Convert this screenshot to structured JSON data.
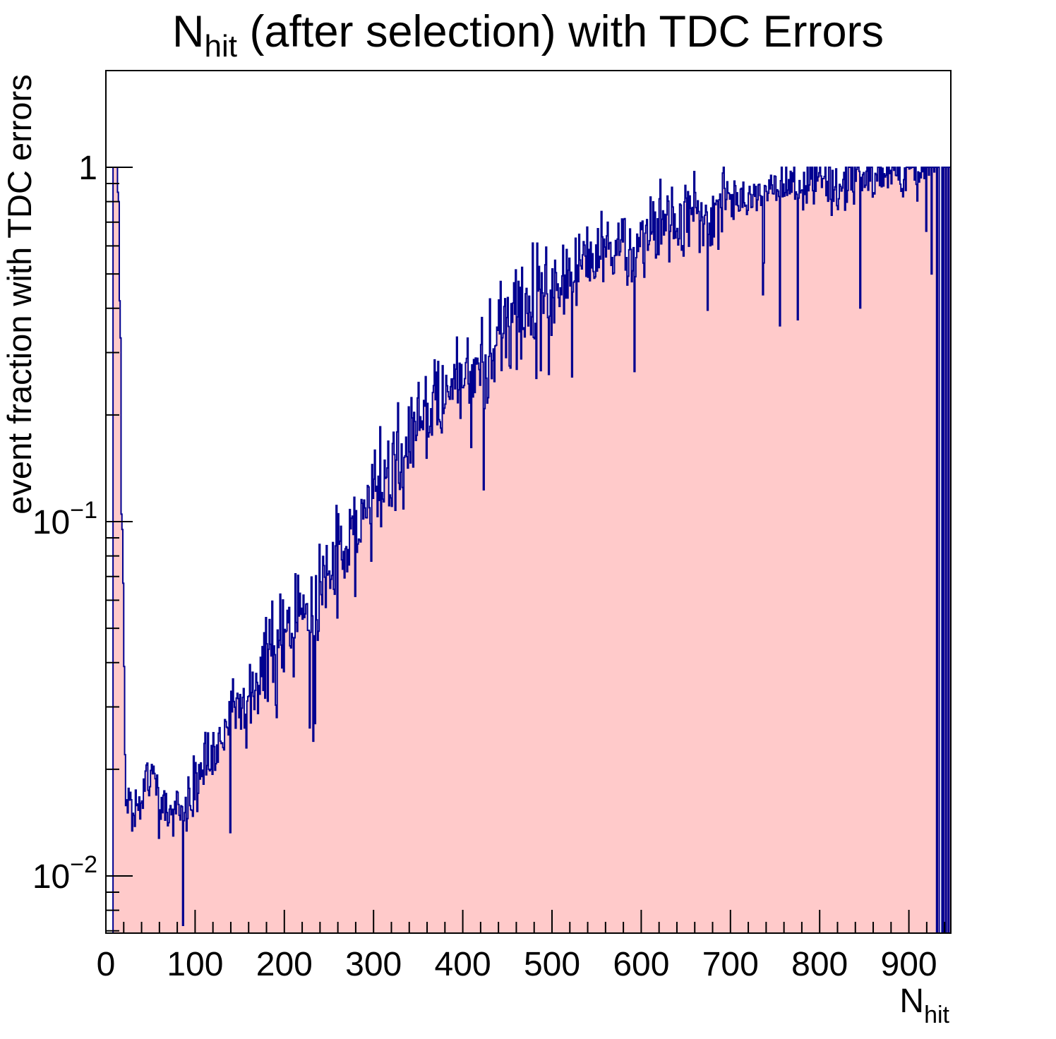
{
  "title": "N_hit (after selection) with TDC Errors",
  "chart_data": {
    "type": "histogram",
    "title_parts": {
      "prefix": "N",
      "subscript": "hit",
      "suffix": " (after selection) with TDC Errors"
    },
    "x_axis": {
      "title_prefix": "N",
      "title_subscript": "hit",
      "range": [
        0,
        947
      ],
      "minor_tick_step": 20,
      "ticks": [
        {
          "value": 0,
          "label": "0"
        },
        {
          "value": 100,
          "label": "100"
        },
        {
          "value": 200,
          "label": "200"
        },
        {
          "value": 300,
          "label": "300"
        },
        {
          "value": 400,
          "label": "400"
        },
        {
          "value": 500,
          "label": "500"
        },
        {
          "value": 600,
          "label": "600"
        },
        {
          "value": 700,
          "label": "700"
        },
        {
          "value": 800,
          "label": "800"
        },
        {
          "value": 900,
          "label": "900"
        }
      ]
    },
    "y_axis": {
      "title": "event fraction with TDC errors",
      "scale": "log",
      "range": [
        0.0069,
        1.87
      ],
      "ticks": [
        {
          "value": 1,
          "label": "1",
          "base": "",
          "exp": ""
        },
        {
          "value": 0.1,
          "label": "10^-1",
          "base": "10",
          "exp": "−1"
        },
        {
          "value": 0.01,
          "label": "10^-2",
          "base": "10",
          "exp": "−2"
        }
      ]
    },
    "bins": {
      "count": 947,
      "width": 1,
      "start": 0
    },
    "trend_anchors": [
      [
        22,
        0.0158
      ],
      [
        26,
        0.017
      ],
      [
        30,
        0.0165
      ],
      [
        36,
        0.017
      ],
      [
        42,
        0.018
      ],
      [
        48,
        0.0185
      ],
      [
        54,
        0.019
      ],
      [
        58,
        0.0175
      ],
      [
        64,
        0.016
      ],
      [
        70,
        0.0155
      ],
      [
        76,
        0.016
      ],
      [
        82,
        0.0165
      ],
      [
        88,
        0.0155
      ],
      [
        94,
        0.0165
      ],
      [
        100,
        0.019
      ],
      [
        110,
        0.0205
      ],
      [
        120,
        0.022
      ],
      [
        130,
        0.025
      ],
      [
        140,
        0.028
      ],
      [
        150,
        0.03
      ],
      [
        160,
        0.032
      ],
      [
        170,
        0.036
      ],
      [
        180,
        0.042
      ],
      [
        190,
        0.044
      ],
      [
        200,
        0.047
      ],
      [
        210,
        0.051
      ],
      [
        220,
        0.056
      ],
      [
        230,
        0.059
      ],
      [
        240,
        0.063
      ],
      [
        250,
        0.071
      ],
      [
        260,
        0.079
      ],
      [
        270,
        0.087
      ],
      [
        280,
        0.096
      ],
      [
        290,
        0.106
      ],
      [
        300,
        0.117
      ],
      [
        310,
        0.128
      ],
      [
        320,
        0.14
      ],
      [
        330,
        0.152
      ],
      [
        340,
        0.166
      ],
      [
        350,
        0.18
      ],
      [
        360,
        0.195
      ],
      [
        370,
        0.21
      ],
      [
        380,
        0.226
      ],
      [
        390,
        0.242
      ],
      [
        400,
        0.258
      ],
      [
        410,
        0.272
      ],
      [
        420,
        0.287
      ],
      [
        430,
        0.302
      ],
      [
        440,
        0.322
      ],
      [
        450,
        0.342
      ],
      [
        460,
        0.365
      ],
      [
        470,
        0.385
      ],
      [
        480,
        0.405
      ],
      [
        490,
        0.425
      ],
      [
        500,
        0.445
      ],
      [
        510,
        0.465
      ],
      [
        520,
        0.485
      ],
      [
        530,
        0.505
      ],
      [
        540,
        0.525
      ],
      [
        550,
        0.545
      ],
      [
        560,
        0.565
      ],
      [
        570,
        0.585
      ],
      [
        580,
        0.605
      ],
      [
        590,
        0.625
      ],
      [
        600,
        0.645
      ],
      [
        620,
        0.675
      ],
      [
        640,
        0.705
      ],
      [
        660,
        0.735
      ],
      [
        680,
        0.762
      ],
      [
        700,
        0.79
      ],
      [
        720,
        0.815
      ],
      [
        740,
        0.84
      ],
      [
        760,
        0.865
      ],
      [
        780,
        0.888
      ],
      [
        800,
        0.908
      ],
      [
        820,
        0.924
      ],
      [
        840,
        0.937
      ],
      [
        860,
        0.947
      ],
      [
        880,
        0.955
      ],
      [
        900,
        0.961
      ],
      [
        916,
        0.965
      ],
      [
        947,
        0.97
      ]
    ],
    "explicit_bins": {
      "0": 0,
      "1": 0,
      "2": 0,
      "3": 0,
      "4": 0,
      "5": 0,
      "6": 0,
      "7": 0,
      "8": 1,
      "9": 1,
      "10": 1,
      "11": 1,
      "12": 1,
      "13": 0.85,
      "14": 0.8,
      "15": 0.42,
      "16": 0.33,
      "17": 0.105,
      "18": 0.095,
      "19": 0.067,
      "20": 0.039,
      "21": 0.022,
      "22": 0.0158,
      "29": 0.0134,
      "90": 0.0134,
      "232": 0.024,
      "916": 1,
      "917": 0.93,
      "918": 1,
      "919": 0.66,
      "920": 1,
      "921": 1,
      "922": 0.95,
      "923": 1,
      "924": 1,
      "925": 0.5,
      "926": 1,
      "927": 1,
      "928": 0.97,
      "929": 1,
      "930": 1,
      "931": 0,
      "932": 1,
      "933": 1,
      "934": 0,
      "935": 0,
      "936": 0,
      "937": 1,
      "938": 0,
      "939": 1,
      "940": 1,
      "941": 0,
      "942": 1,
      "943": 1,
      "944": 0,
      "945": 1,
      "946": 1
    },
    "noise": {
      "seed": 1337,
      "sigma_by_value": [
        [
          0.025,
          0.045
        ],
        [
          0.06,
          0.06
        ],
        [
          0.45,
          0.07
        ],
        [
          0.8,
          0.055
        ],
        [
          2.0,
          0.035
        ]
      ],
      "downspike_probability": 0.02,
      "downspike_log10_depth": [
        0.12,
        0.3
      ],
      "clamp_max": 1.0
    },
    "colors": {
      "fill": "#ffcaca",
      "line": "#000090",
      "axis": "#000000",
      "background": "#ffffff"
    }
  }
}
